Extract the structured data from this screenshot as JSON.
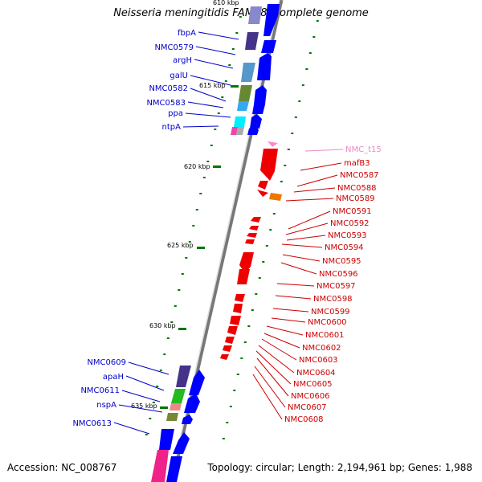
{
  "title": "Neisseria meningitidis FAM18, complete genome",
  "accession": "Accession: NC_008767",
  "topology": "Topology: circular; Length: 2,194,961 bp; Genes: 1,988",
  "scale_marks": [
    "610 kbp",
    "615 kbp",
    "620 kbp",
    "625 kbp",
    "630 kbp",
    "635 kbp"
  ],
  "genes_left": [
    "fbpA",
    "NMC0579",
    "argH",
    "galU",
    "NMC0582",
    "NMC0583",
    "ppa",
    "ntpA",
    "NMC0609",
    "apaH",
    "NMC0611",
    "nspA",
    "NMC0613"
  ],
  "genes_right": [
    "NMC_t15",
    "mafB3",
    "NMC0587",
    "NMC0588",
    "NMC0589",
    "NMC0591",
    "NMC0592",
    "NMC0593",
    "NMC0594",
    "NMC0595",
    "NMC0596",
    "NMC0597",
    "NMC0598",
    "NMC0599",
    "NMC0600",
    "NMC0601",
    "NMC0602",
    "NMC0603",
    "NMC0604",
    "NMC0605",
    "NMC0606",
    "NMC0607",
    "NMC0608"
  ],
  "colors": {
    "backbone": "#999999",
    "forward_strand": "#0000ff",
    "reverse_strand": "#ff0000",
    "tick": "#007700",
    "left_label": "#0000cc",
    "right_label": "#cc0000",
    "trna_label": "#ee88cc"
  }
}
